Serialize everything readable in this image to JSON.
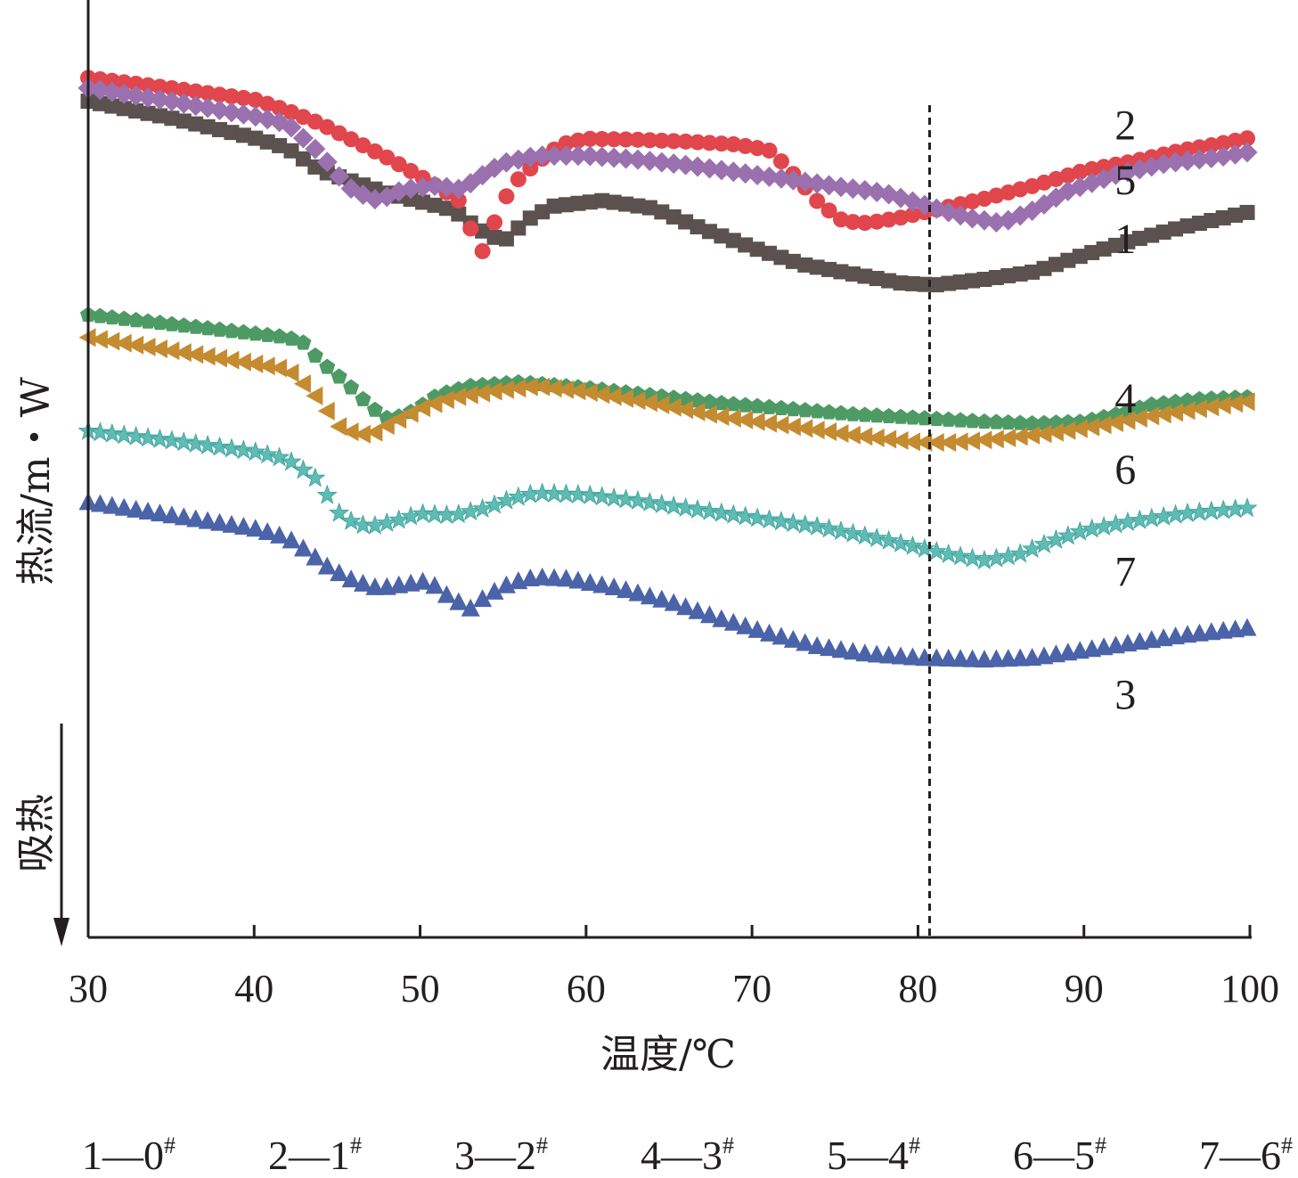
{
  "chart_data": {
    "type": "scatter",
    "xlabel": "温度/℃",
    "ylabel": "热流/m・W",
    "endotherm_label": "吸热",
    "x_ticks": [
      "30",
      "40",
      "50",
      "60",
      "70",
      "80",
      "90",
      "100"
    ],
    "xlim": [
      30,
      100
    ],
    "ylim": [
      0,
      100
    ],
    "y_ticks_shown": false,
    "grid": false,
    "reference_line_x": 80.7,
    "series": [
      {
        "name": "1",
        "marker": "square",
        "color": "#5b514f",
        "label_x": 92.5,
        "label_y": 73.0,
        "points": [
          [
            30,
            89.2
          ],
          [
            35,
            87.4
          ],
          [
            40,
            85.3
          ],
          [
            42,
            84.2
          ],
          [
            44,
            81.8
          ],
          [
            48,
            79.4
          ],
          [
            52,
            77.6
          ],
          [
            53.5,
            75.6
          ],
          [
            55,
            74.2
          ],
          [
            56.5,
            76.6
          ],
          [
            58,
            78.0
          ],
          [
            61,
            78.6
          ],
          [
            64,
            77.8
          ],
          [
            67,
            75.6
          ],
          [
            70,
            73.6
          ],
          [
            73,
            71.8
          ],
          [
            76,
            70.8
          ],
          [
            79,
            69.8
          ],
          [
            81,
            69.6
          ],
          [
            84,
            70.2
          ],
          [
            87,
            71.0
          ],
          [
            90,
            72.8
          ],
          [
            93,
            74.4
          ],
          [
            96,
            75.8
          ],
          [
            98,
            76.6
          ],
          [
            100,
            77.4
          ]
        ]
      },
      {
        "name": "2",
        "marker": "circle",
        "color": "#e0464c",
        "label_x": 92.5,
        "label_y": 85.1,
        "points": [
          [
            30,
            91.7
          ],
          [
            35,
            90.6
          ],
          [
            40,
            89.4
          ],
          [
            42,
            88.2
          ],
          [
            44,
            86.8
          ],
          [
            46,
            85.0
          ],
          [
            48,
            83.2
          ],
          [
            50,
            81.2
          ],
          [
            51.5,
            79.6
          ],
          [
            52.5,
            78.4
          ],
          [
            53.2,
            74.8
          ],
          [
            53.9,
            72.8
          ],
          [
            54.5,
            76.4
          ],
          [
            55.5,
            80.2
          ],
          [
            57,
            82.6
          ],
          [
            58.5,
            84.6
          ],
          [
            60,
            85.2
          ],
          [
            63,
            85.1
          ],
          [
            66,
            84.9
          ],
          [
            69,
            84.6
          ],
          [
            71,
            84.0
          ],
          [
            72,
            82.4
          ],
          [
            73,
            80.4
          ],
          [
            74,
            78.4
          ],
          [
            75.5,
            76.4
          ],
          [
            77,
            76.2
          ],
          [
            79,
            76.8
          ],
          [
            81,
            77.6
          ],
          [
            84,
            78.8
          ],
          [
            87,
            80.2
          ],
          [
            90,
            81.8
          ],
          [
            93,
            82.8
          ],
          [
            96,
            84.0
          ],
          [
            98,
            84.6
          ],
          [
            100,
            85.3
          ]
        ]
      },
      {
        "name": "5",
        "marker": "diamond",
        "color": "#9a71ae",
        "label_x": 92.5,
        "label_y": 79.3,
        "points": [
          [
            30,
            90.6
          ],
          [
            35,
            89.2
          ],
          [
            40,
            87.6
          ],
          [
            42,
            86.8
          ],
          [
            43,
            85.2
          ],
          [
            44,
            83.6
          ],
          [
            45,
            81.4
          ],
          [
            46,
            79.6
          ],
          [
            47.5,
            78.6
          ],
          [
            49,
            79.8
          ],
          [
            51,
            80.2
          ],
          [
            52.5,
            79.8
          ],
          [
            54,
            81.6
          ],
          [
            55,
            82.6
          ],
          [
            57,
            83.4
          ],
          [
            60,
            83.4
          ],
          [
            63,
            83.0
          ],
          [
            66,
            82.4
          ],
          [
            70,
            81.4
          ],
          [
            74,
            80.4
          ],
          [
            78,
            79.4
          ],
          [
            81,
            77.8
          ],
          [
            83,
            76.8
          ],
          [
            85,
            76.2
          ],
          [
            87,
            77.6
          ],
          [
            89,
            79.6
          ],
          [
            92,
            81.4
          ],
          [
            95,
            82.6
          ],
          [
            98,
            83.2
          ],
          [
            100,
            83.8
          ]
        ]
      },
      {
        "name": "4",
        "marker": "pentagon",
        "color": "#4e9a64",
        "label_x": 92.5,
        "label_y": 56.0,
        "points": [
          [
            30,
            66.4
          ],
          [
            35,
            65.4
          ],
          [
            40,
            64.4
          ],
          [
            42,
            64.0
          ],
          [
            43,
            63.4
          ],
          [
            44,
            61.4
          ],
          [
            45,
            60.0
          ],
          [
            46,
            58.4
          ],
          [
            47,
            56.6
          ],
          [
            48,
            55.4
          ],
          [
            49,
            55.6
          ],
          [
            50,
            56.6
          ],
          [
            51,
            57.8
          ],
          [
            53,
            58.8
          ],
          [
            56,
            59.2
          ],
          [
            60,
            58.6
          ],
          [
            64,
            57.8
          ],
          [
            68,
            57.0
          ],
          [
            72,
            56.4
          ],
          [
            76,
            55.8
          ],
          [
            80,
            55.4
          ],
          [
            84,
            55.0
          ],
          [
            87,
            54.8
          ],
          [
            90,
            55.0
          ],
          [
            92,
            55.8
          ],
          [
            94,
            56.8
          ],
          [
            97,
            57.4
          ],
          [
            100,
            57.6
          ]
        ]
      },
      {
        "name": "6",
        "marker": "triangle-left",
        "color": "#c58b31",
        "label_x": 92.5,
        "label_y": 48.4,
        "points": [
          [
            30,
            64.0
          ],
          [
            35,
            62.6
          ],
          [
            40,
            61.2
          ],
          [
            42,
            60.6
          ],
          [
            43,
            59.0
          ],
          [
            44,
            57.2
          ],
          [
            45,
            54.6
          ],
          [
            46,
            53.8
          ],
          [
            47,
            53.6
          ],
          [
            48,
            54.6
          ],
          [
            50,
            56.4
          ],
          [
            52,
            57.6
          ],
          [
            55,
            58.4
          ],
          [
            57,
            58.8
          ],
          [
            60,
            58.2
          ],
          [
            64,
            57.0
          ],
          [
            68,
            55.6
          ],
          [
            72,
            54.6
          ],
          [
            76,
            53.6
          ],
          [
            80,
            52.8
          ],
          [
            82,
            52.8
          ],
          [
            85,
            53.2
          ],
          [
            88,
            53.8
          ],
          [
            91,
            54.6
          ],
          [
            94,
            55.6
          ],
          [
            97,
            56.4
          ],
          [
            100,
            57.2
          ]
        ]
      },
      {
        "name": "7",
        "marker": "star",
        "color": "#5ebcb5",
        "label_x": 92.5,
        "label_y": 37.5,
        "points": [
          [
            30,
            54.0
          ],
          [
            35,
            53.0
          ],
          [
            40,
            51.8
          ],
          [
            42,
            51.0
          ],
          [
            43,
            49.8
          ],
          [
            44,
            48.6
          ],
          [
            44.5,
            46.8
          ],
          [
            45,
            45.4
          ],
          [
            46,
            44.2
          ],
          [
            47,
            43.8
          ],
          [
            48.5,
            44.4
          ],
          [
            50,
            45.2
          ],
          [
            52,
            45.0
          ],
          [
            54,
            45.8
          ],
          [
            55.5,
            46.8
          ],
          [
            57,
            47.4
          ],
          [
            60,
            47.2
          ],
          [
            63,
            46.6
          ],
          [
            66,
            45.8
          ],
          [
            70,
            44.8
          ],
          [
            74,
            43.8
          ],
          [
            78,
            42.4
          ],
          [
            80,
            41.6
          ],
          [
            82,
            40.8
          ],
          [
            84,
            40.2
          ],
          [
            86,
            40.8
          ],
          [
            88,
            42.2
          ],
          [
            90,
            43.4
          ],
          [
            93,
            44.4
          ],
          [
            96,
            45.2
          ],
          [
            100,
            45.8
          ]
        ]
      },
      {
        "name": "3",
        "marker": "triangle-up",
        "color": "#4b63a8",
        "label_x": 92.5,
        "label_y": 24.4,
        "points": [
          [
            30,
            46.4
          ],
          [
            35,
            45.0
          ],
          [
            40,
            43.6
          ],
          [
            42,
            42.6
          ],
          [
            43,
            41.4
          ],
          [
            44.5,
            39.4
          ],
          [
            46,
            38.0
          ],
          [
            47.5,
            37.2
          ],
          [
            49,
            37.6
          ],
          [
            50.5,
            38.0
          ],
          [
            51.5,
            36.6
          ],
          [
            53,
            35.0
          ],
          [
            54,
            36.4
          ],
          [
            55.5,
            37.8
          ],
          [
            57,
            38.4
          ],
          [
            59,
            38.2
          ],
          [
            62,
            37.2
          ],
          [
            65,
            35.8
          ],
          [
            68,
            34.0
          ],
          [
            71,
            32.4
          ],
          [
            74,
            31.0
          ],
          [
            77,
            30.2
          ],
          [
            80,
            29.8
          ],
          [
            84,
            29.6
          ],
          [
            87,
            29.8
          ],
          [
            90,
            30.6
          ],
          [
            93,
            31.4
          ],
          [
            96,
            32.2
          ],
          [
            100,
            33.0
          ]
        ]
      }
    ]
  },
  "legend_items": [
    {
      "text": "1—0",
      "sup": "#"
    },
    {
      "text": "2—1",
      "sup": "#"
    },
    {
      "text": "3—2",
      "sup": "#"
    },
    {
      "text": "4—3",
      "sup": "#"
    },
    {
      "text": "5—4",
      "sup": "#"
    },
    {
      "text": "6—5",
      "sup": "#"
    },
    {
      "text": "7—6",
      "sup": "#"
    }
  ]
}
